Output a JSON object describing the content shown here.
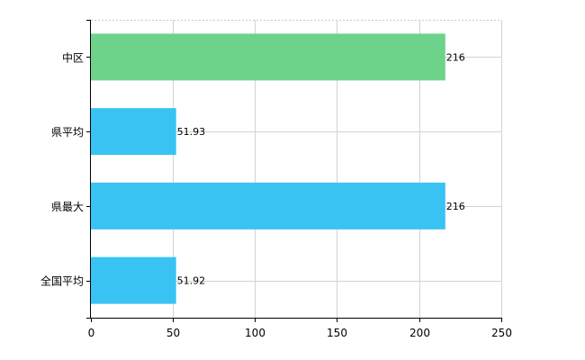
{
  "chart_data": {
    "type": "bar",
    "orientation": "horizontal",
    "categories": [
      "中区",
      "県平均",
      "県最大",
      "全国平均"
    ],
    "values": [
      216,
      51.93,
      216,
      51.92
    ],
    "data_labels": [
      "216",
      "51.93",
      "216",
      "51.92"
    ],
    "colors": [
      "#6dd38a",
      "#39c3f3",
      "#39c3f3",
      "#39c3f3"
    ],
    "title": "",
    "xlabel": "",
    "ylabel": "",
    "xlim": [
      0,
      250
    ],
    "xticks": [
      0,
      50,
      100,
      150,
      200,
      250
    ],
    "xtick_labels": [
      "0",
      "50",
      "100",
      "150",
      "200",
      "250"
    ],
    "grid": true,
    "legend": "none"
  }
}
